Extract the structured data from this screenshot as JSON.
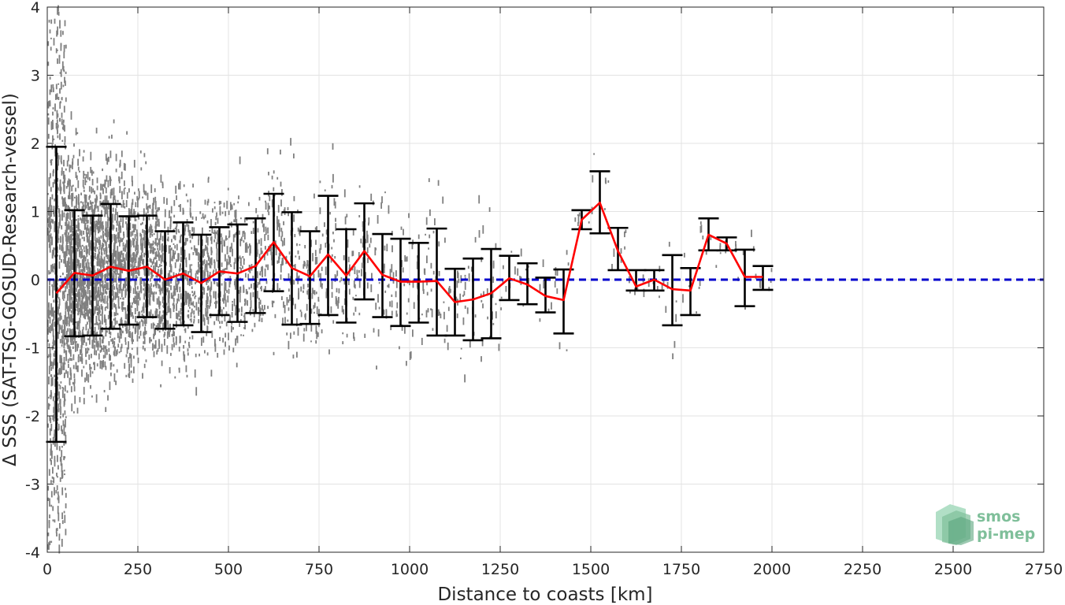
{
  "chart_data": {
    "type": "scatter",
    "title": "",
    "xlabel": "Distance to coasts [km]",
    "ylabel": "Δ SSS (SAT-TSG-GOSUD-Research-vessel)",
    "xlim": [
      0,
      2750
    ],
    "ylim": [
      -4,
      4
    ],
    "xticks": [
      0,
      250,
      500,
      750,
      1000,
      1250,
      1500,
      1750,
      2000,
      2250,
      2500,
      2750
    ],
    "yticks": [
      -4,
      -3,
      -2,
      -1,
      0,
      1,
      2,
      3,
      4
    ],
    "xtick_labels": [
      "0",
      "250",
      "500",
      "750",
      "1000",
      "1250",
      "1500",
      "1750",
      "2000",
      "2250",
      "2500",
      "2750"
    ],
    "ytick_labels": [
      "-4",
      "-3",
      "-2",
      "-1",
      "0",
      "1",
      "2",
      "3",
      "4"
    ],
    "grid": true,
    "reference_line": {
      "y": 0,
      "style": "dashed",
      "color": "#0000cc"
    },
    "scatter_color": "#808080",
    "mean_color": "#ff0000",
    "errorbar_color": "#000000",
    "series": [
      {
        "kind": "mean_with_errorbars",
        "x": [
          25,
          75,
          125,
          175,
          225,
          275,
          325,
          375,
          425,
          475,
          525,
          575,
          625,
          675,
          725,
          775,
          825,
          875,
          925,
          975,
          1025,
          1075,
          1125,
          1175,
          1225,
          1275,
          1325,
          1375,
          1425,
          1475,
          1525,
          1575,
          1625,
          1675,
          1725,
          1775,
          1825,
          1875,
          1925,
          1975
        ],
        "mean": [
          -0.2,
          0.1,
          0.06,
          0.19,
          0.13,
          0.19,
          0.0,
          0.09,
          -0.05,
          0.12,
          0.09,
          0.2,
          0.55,
          0.17,
          0.05,
          0.37,
          0.06,
          0.42,
          0.07,
          -0.03,
          -0.03,
          -0.02,
          -0.33,
          -0.29,
          -0.2,
          0.02,
          -0.07,
          -0.24,
          -0.3,
          0.88,
          1.13,
          0.42,
          -0.1,
          0.0,
          -0.14,
          -0.16,
          0.66,
          0.53,
          0.04,
          0.04
        ],
        "upper": [
          1.95,
          1.02,
          0.94,
          1.11,
          0.93,
          0.94,
          0.71,
          0.84,
          0.66,
          0.77,
          0.81,
          0.9,
          1.26,
          0.99,
          0.71,
          1.23,
          0.74,
          1.12,
          0.67,
          0.6,
          0.54,
          0.75,
          0.16,
          0.31,
          0.45,
          0.35,
          0.24,
          0.03,
          0.15,
          1.02,
          1.59,
          0.76,
          0.14,
          0.14,
          0.36,
          0.17,
          0.9,
          0.62,
          0.44,
          0.2
        ],
        "lower": [
          -2.38,
          -0.83,
          -0.82,
          -0.72,
          -0.66,
          -0.55,
          -0.72,
          -0.67,
          -0.77,
          -0.52,
          -0.62,
          -0.49,
          -0.17,
          -0.66,
          -0.65,
          -0.52,
          -0.63,
          -0.29,
          -0.55,
          -0.68,
          -0.63,
          -0.82,
          -0.82,
          -0.89,
          -0.86,
          -0.3,
          -0.36,
          -0.48,
          -0.79,
          0.74,
          0.68,
          0.14,
          -0.16,
          -0.16,
          -0.67,
          -0.52,
          0.43,
          0.43,
          -0.39,
          -0.15
        ]
      }
    ]
  },
  "logo": {
    "line1": "smos",
    "line2": "pi-mep",
    "color": "#7fbf9a"
  }
}
